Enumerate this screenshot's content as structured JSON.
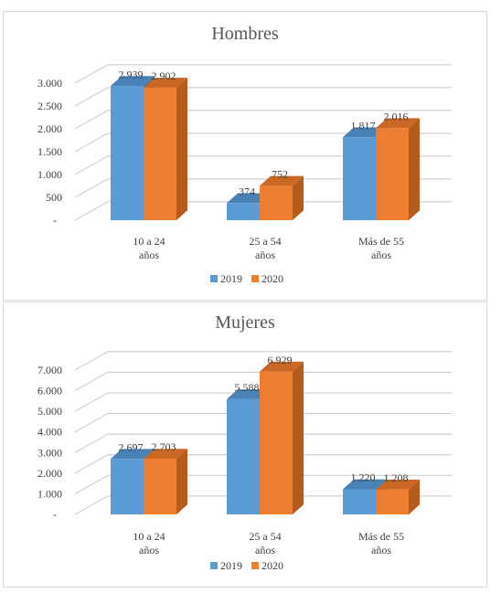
{
  "chart_data": [
    {
      "type": "bar",
      "title": "Hombres",
      "categories": [
        [
          "10 a 24",
          "años"
        ],
        [
          "25 a 54",
          "años"
        ],
        [
          "Más de 55",
          "años"
        ]
      ],
      "series": [
        {
          "name": "2019",
          "values": [
            2939,
            374,
            1817
          ],
          "labels": [
            "2.939",
            "374",
            "1.817"
          ]
        },
        {
          "name": "2020",
          "values": [
            2902,
            752,
            2016
          ],
          "labels": [
            "2.902",
            "752",
            "2.016"
          ]
        }
      ],
      "yticks": [
        0,
        500,
        1000,
        1500,
        2000,
        2500,
        3000
      ],
      "ytick_labels": [
        "-",
        "500",
        "1.000",
        "1.500",
        "2.000",
        "2.500",
        "3.000"
      ],
      "ylim": [
        0,
        3000
      ],
      "legend_position": "bottom",
      "style": "3d-clustered-column"
    },
    {
      "type": "bar",
      "title": "Mujeres",
      "categories": [
        [
          "10 a 24",
          "años"
        ],
        [
          "25 a 54",
          "años"
        ],
        [
          "Más de 55",
          "años"
        ]
      ],
      "series": [
        {
          "name": "2019",
          "values": [
            2697,
            5588,
            1220
          ],
          "labels": [
            "2.697",
            "5.588",
            "1.220"
          ]
        },
        {
          "name": "2020",
          "values": [
            2703,
            6929,
            1208
          ],
          "labels": [
            "2.703",
            "6.929",
            "1.208"
          ]
        }
      ],
      "yticks": [
        0,
        1000,
        2000,
        3000,
        4000,
        5000,
        6000,
        7000
      ],
      "ytick_labels": [
        "-",
        "1.000",
        "2.000",
        "3.000",
        "4.000",
        "5.000",
        "6.000",
        "7.000"
      ],
      "ylim": [
        0,
        7000
      ],
      "legend_position": "bottom",
      "style": "3d-clustered-column"
    }
  ],
  "colors": {
    "series_2019": {
      "front": "#5b9bd5",
      "side": "#3f6f9e",
      "top": "#4a82b8"
    },
    "series_2020": {
      "front": "#ed7d31",
      "side": "#b55b1c",
      "top": "#c96824"
    },
    "gridline": "#c8c8c8",
    "text": "#404040"
  }
}
